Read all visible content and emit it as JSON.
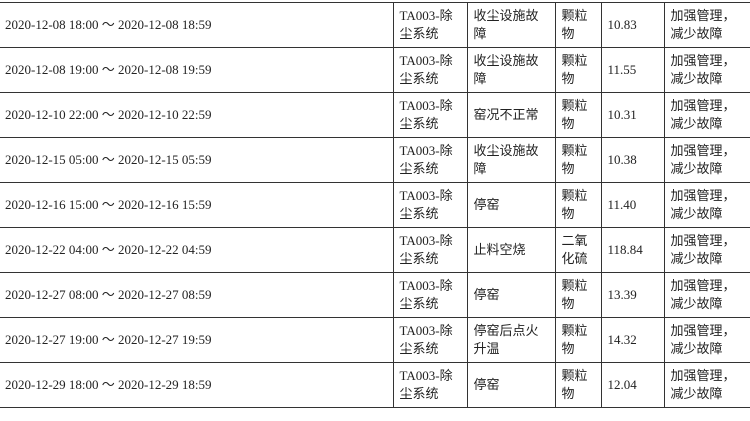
{
  "rows": [
    {
      "period": "2020-12-08 18:00 ～ 2020-12-08 18:59",
      "facility": "TA003-除尘系统",
      "reason": "收尘设施故障",
      "pollutant": "颗粒物",
      "value": "10.83",
      "measure": "加强管理，减少故障"
    },
    {
      "period": "2020-12-08 19:00 ～ 2020-12-08 19:59",
      "facility": "TA003-除尘系统",
      "reason": "收尘设施故障",
      "pollutant": "颗粒物",
      "value": "11.55",
      "measure": "加强管理，减少故障"
    },
    {
      "period": "2020-12-10 22:00 ～ 2020-12-10 22:59",
      "facility": "TA003-除尘系统",
      "reason": "窑况不正常",
      "pollutant": "颗粒物",
      "value": "10.31",
      "measure": "加强管理，减少故障"
    },
    {
      "period": "2020-12-15 05:00 ～ 2020-12-15 05:59",
      "facility": "TA003-除尘系统",
      "reason": "收尘设施故障",
      "pollutant": "颗粒物",
      "value": "10.38",
      "measure": "加强管理，减少故障"
    },
    {
      "period": "2020-12-16 15:00 ～ 2020-12-16 15:59",
      "facility": "TA003-除尘系统",
      "reason": "停窑",
      "pollutant": "颗粒物",
      "value": "11.40",
      "measure": "加强管理，减少故障"
    },
    {
      "period": "2020-12-22 04:00 ～ 2020-12-22 04:59",
      "facility": "TA003-除尘系统",
      "reason": "止料空烧",
      "pollutant": "二氧化硫",
      "value": "118.84",
      "measure": "加强管理，减少故障"
    },
    {
      "period": "2020-12-27 08:00 ～ 2020-12-27 08:59",
      "facility": "TA003-除尘系统",
      "reason": "停窑",
      "pollutant": "颗粒物",
      "value": "13.39",
      "measure": "加强管理，减少故障"
    },
    {
      "period": "2020-12-27 19:00 ～ 2020-12-27 19:59",
      "facility": "TA003-除尘系统",
      "reason": "停窑后点火升温",
      "pollutant": "颗粒物",
      "value": "14.32",
      "measure": "加强管理，减少故障"
    },
    {
      "period": "2020-12-29 18:00 ～ 2020-12-29 18:59",
      "facility": "TA003-除尘系统",
      "reason": "停窑",
      "pollutant": "颗粒物",
      "value": "12.04",
      "measure": "加强管理，减少故障"
    }
  ]
}
